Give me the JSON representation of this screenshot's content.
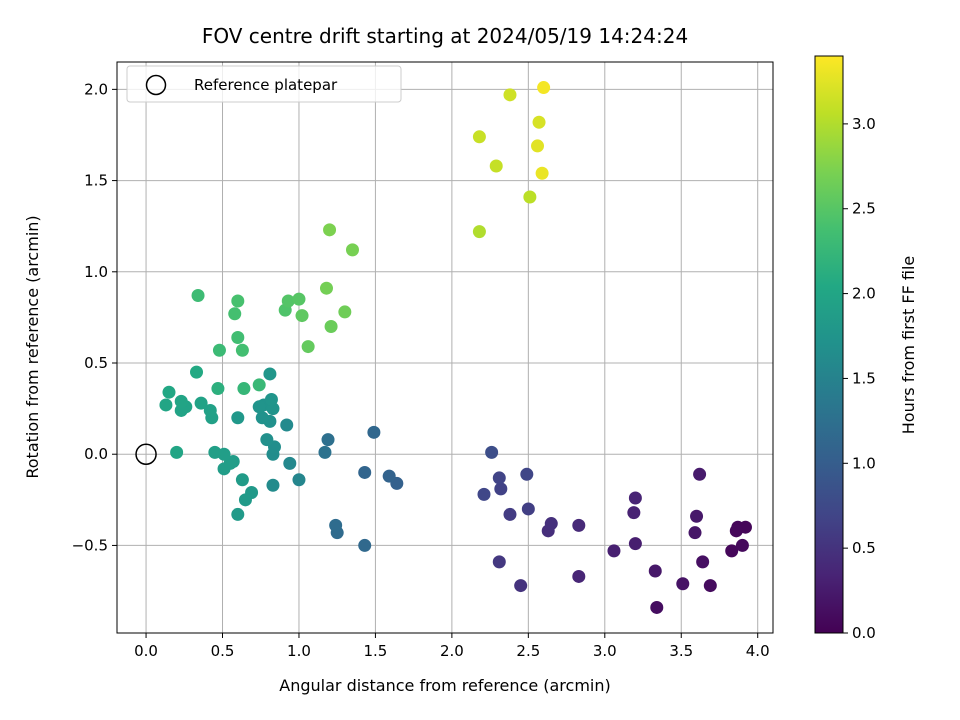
{
  "chart_data": {
    "type": "scatter",
    "title": "FOV centre drift starting at 2024/05/19 14:24:24",
    "xlabel": "Angular distance from reference (arcmin)",
    "ylabel": "Rotation from reference (arcmin)",
    "xlim": [
      -0.19,
      4.1
    ],
    "ylim": [
      -0.98,
      2.15
    ],
    "xticks": [
      0.0,
      0.5,
      1.0,
      1.5,
      2.0,
      2.5,
      3.0,
      3.5,
      4.0
    ],
    "xtick_labels": [
      "0.0",
      "0.5",
      "1.0",
      "1.5",
      "2.0",
      "2.5",
      "3.0",
      "3.5",
      "4.0"
    ],
    "yticks": [
      -0.5,
      0.0,
      0.5,
      1.0,
      1.5,
      2.0
    ],
    "ytick_labels": [
      "−0.5",
      "0.0",
      "0.5",
      "1.0",
      "1.5",
      "2.0"
    ],
    "grid": true,
    "legend": {
      "position": "upper-left",
      "label": "Reference platepar",
      "marker": "open circle"
    },
    "reference_point": {
      "x": 0.0,
      "y": 0.0
    },
    "colorbar": {
      "label": "Hours from first FF file",
      "colormap": "viridis",
      "range": [
        0.0,
        3.4
      ],
      "ticks": [
        0.0,
        0.5,
        1.0,
        1.5,
        2.0,
        2.5,
        3.0
      ],
      "tick_labels": [
        "0.0",
        "0.5",
        "1.0",
        "1.5",
        "2.0",
        "2.5",
        "3.0"
      ]
    },
    "points": [
      {
        "x": 3.87,
        "y": -0.4,
        "hours": 0.05
      },
      {
        "x": 3.92,
        "y": -0.4,
        "hours": 0.05
      },
      {
        "x": 3.86,
        "y": -0.42,
        "hours": 0.06
      },
      {
        "x": 3.83,
        "y": -0.53,
        "hours": 0.06
      },
      {
        "x": 3.9,
        "y": -0.5,
        "hours": 0.08
      },
      {
        "x": 3.69,
        "y": -0.72,
        "hours": 0.1
      },
      {
        "x": 3.34,
        "y": -0.84,
        "hours": 0.12
      },
      {
        "x": 3.64,
        "y": -0.59,
        "hours": 0.14
      },
      {
        "x": 3.51,
        "y": -0.71,
        "hours": 0.17
      },
      {
        "x": 3.59,
        "y": -0.43,
        "hours": 0.2
      },
      {
        "x": 3.33,
        "y": -0.64,
        "hours": 0.22
      },
      {
        "x": 3.6,
        "y": -0.34,
        "hours": 0.23
      },
      {
        "x": 3.62,
        "y": -0.11,
        "hours": 0.25
      },
      {
        "x": 3.2,
        "y": -0.49,
        "hours": 0.28
      },
      {
        "x": 3.06,
        "y": -0.53,
        "hours": 0.3
      },
      {
        "x": 3.19,
        "y": -0.32,
        "hours": 0.32
      },
      {
        "x": 3.2,
        "y": -0.24,
        "hours": 0.34
      },
      {
        "x": 2.83,
        "y": -0.67,
        "hours": 0.36
      },
      {
        "x": 2.83,
        "y": -0.39,
        "hours": 0.4
      },
      {
        "x": 2.63,
        "y": -0.42,
        "hours": 0.45
      },
      {
        "x": 2.65,
        "y": -0.38,
        "hours": 0.47
      },
      {
        "x": 2.45,
        "y": -0.72,
        "hours": 0.5
      },
      {
        "x": 2.31,
        "y": -0.59,
        "hours": 0.55
      },
      {
        "x": 2.38,
        "y": -0.33,
        "hours": 0.6
      },
      {
        "x": 2.5,
        "y": -0.3,
        "hours": 0.63
      },
      {
        "x": 2.32,
        "y": -0.19,
        "hours": 0.66
      },
      {
        "x": 2.31,
        "y": -0.13,
        "hours": 0.68
      },
      {
        "x": 2.49,
        "y": -0.11,
        "hours": 0.7
      },
      {
        "x": 2.21,
        "y": -0.22,
        "hours": 0.72
      },
      {
        "x": 2.26,
        "y": 0.01,
        "hours": 0.8
      },
      {
        "x": 1.64,
        "y": -0.16,
        "hours": 1.05
      },
      {
        "x": 1.59,
        "y": -0.12,
        "hours": 1.08
      },
      {
        "x": 1.43,
        "y": -0.1,
        "hours": 1.1
      },
      {
        "x": 1.49,
        "y": 0.12,
        "hours": 1.13
      },
      {
        "x": 1.43,
        "y": -0.5,
        "hours": 1.15
      },
      {
        "x": 1.25,
        "y": -0.43,
        "hours": 1.18
      },
      {
        "x": 1.24,
        "y": -0.39,
        "hours": 1.2
      },
      {
        "x": 1.19,
        "y": 0.08,
        "hours": 1.25
      },
      {
        "x": 1.17,
        "y": 0.01,
        "hours": 1.28
      },
      {
        "x": 1.0,
        "y": -0.14,
        "hours": 1.55
      },
      {
        "x": 0.94,
        "y": -0.05,
        "hours": 1.58
      },
      {
        "x": 0.92,
        "y": 0.16,
        "hours": 1.6
      },
      {
        "x": 0.83,
        "y": -0.17,
        "hours": 1.62
      },
      {
        "x": 0.83,
        "y": 0.0,
        "hours": 1.65
      },
      {
        "x": 0.84,
        "y": 0.04,
        "hours": 1.66
      },
      {
        "x": 0.79,
        "y": 0.08,
        "hours": 1.68
      },
      {
        "x": 0.81,
        "y": 0.18,
        "hours": 1.7
      },
      {
        "x": 0.76,
        "y": 0.2,
        "hours": 1.72
      },
      {
        "x": 0.77,
        "y": 0.27,
        "hours": 1.73
      },
      {
        "x": 0.74,
        "y": 0.26,
        "hours": 1.74
      },
      {
        "x": 0.83,
        "y": 0.25,
        "hours": 1.75
      },
      {
        "x": 0.82,
        "y": 0.3,
        "hours": 1.76
      },
      {
        "x": 0.81,
        "y": 0.44,
        "hours": 1.78
      },
      {
        "x": 0.6,
        "y": 0.2,
        "hours": 1.8
      },
      {
        "x": 0.69,
        "y": -0.21,
        "hours": 1.82
      },
      {
        "x": 0.65,
        "y": -0.25,
        "hours": 1.83
      },
      {
        "x": 0.6,
        "y": -0.33,
        "hours": 1.84
      },
      {
        "x": 0.63,
        "y": -0.14,
        "hours": 1.85
      },
      {
        "x": 0.57,
        "y": -0.04,
        "hours": 1.86
      },
      {
        "x": 0.51,
        "y": -0.08,
        "hours": 1.87
      },
      {
        "x": 0.55,
        "y": -0.05,
        "hours": 1.88
      },
      {
        "x": 0.51,
        "y": 0.0,
        "hours": 1.89
      },
      {
        "x": 0.45,
        "y": 0.01,
        "hours": 1.9
      },
      {
        "x": 0.43,
        "y": 0.2,
        "hours": 1.92
      },
      {
        "x": 0.42,
        "y": 0.24,
        "hours": 1.93
      },
      {
        "x": 0.36,
        "y": 0.28,
        "hours": 1.95
      },
      {
        "x": 0.26,
        "y": 0.26,
        "hours": 1.96
      },
      {
        "x": 0.23,
        "y": 0.24,
        "hours": 1.97
      },
      {
        "x": 0.23,
        "y": 0.29,
        "hours": 1.98
      },
      {
        "x": 0.2,
        "y": 0.01,
        "hours": 1.99
      },
      {
        "x": 0.13,
        "y": 0.27,
        "hours": 2.0
      },
      {
        "x": 0.15,
        "y": 0.34,
        "hours": 2.02
      },
      {
        "x": 0.33,
        "y": 0.45,
        "hours": 2.05
      },
      {
        "x": 0.47,
        "y": 0.36,
        "hours": 2.15
      },
      {
        "x": 0.64,
        "y": 0.36,
        "hours": 2.25
      },
      {
        "x": 0.74,
        "y": 0.38,
        "hours": 2.28
      },
      {
        "x": 0.48,
        "y": 0.57,
        "hours": 2.3
      },
      {
        "x": 0.34,
        "y": 0.87,
        "hours": 2.32
      },
      {
        "x": 0.6,
        "y": 0.64,
        "hours": 2.35
      },
      {
        "x": 0.63,
        "y": 0.57,
        "hours": 2.37
      },
      {
        "x": 0.58,
        "y": 0.77,
        "hours": 2.38
      },
      {
        "x": 0.6,
        "y": 0.84,
        "hours": 2.4
      },
      {
        "x": 0.91,
        "y": 0.79,
        "hours": 2.45
      },
      {
        "x": 0.93,
        "y": 0.84,
        "hours": 2.48
      },
      {
        "x": 1.0,
        "y": 0.85,
        "hours": 2.5
      },
      {
        "x": 1.02,
        "y": 0.76,
        "hours": 2.55
      },
      {
        "x": 1.06,
        "y": 0.59,
        "hours": 2.58
      },
      {
        "x": 1.21,
        "y": 0.7,
        "hours": 2.62
      },
      {
        "x": 1.3,
        "y": 0.78,
        "hours": 2.65
      },
      {
        "x": 1.18,
        "y": 0.91,
        "hours": 2.68
      },
      {
        "x": 1.35,
        "y": 1.12,
        "hours": 2.7
      },
      {
        "x": 1.2,
        "y": 1.23,
        "hours": 2.73
      },
      {
        "x": 2.18,
        "y": 1.22,
        "hours": 3.0
      },
      {
        "x": 2.51,
        "y": 1.41,
        "hours": 3.05
      },
      {
        "x": 2.29,
        "y": 1.58,
        "hours": 3.1
      },
      {
        "x": 2.18,
        "y": 1.74,
        "hours": 3.12
      },
      {
        "x": 2.38,
        "y": 1.97,
        "hours": 3.15
      },
      {
        "x": 2.57,
        "y": 1.82,
        "hours": 3.2
      },
      {
        "x": 2.56,
        "y": 1.69,
        "hours": 3.25
      },
      {
        "x": 2.59,
        "y": 1.54,
        "hours": 3.3
      },
      {
        "x": 2.6,
        "y": 2.01,
        "hours": 3.35
      }
    ]
  }
}
